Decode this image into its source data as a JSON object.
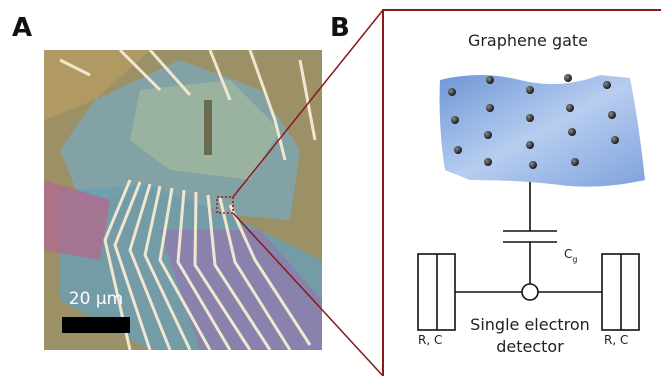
{
  "panels": {
    "a": {
      "label": "A",
      "scale_bar": "20 μm"
    },
    "b": {
      "label": "B",
      "title": "Graphene gate",
      "capacitor": {
        "label": "C",
        "subscript": "g"
      },
      "left_element": "R, C",
      "right_element": "R, C",
      "detector": [
        "Single electron",
        "detector"
      ]
    }
  }
}
